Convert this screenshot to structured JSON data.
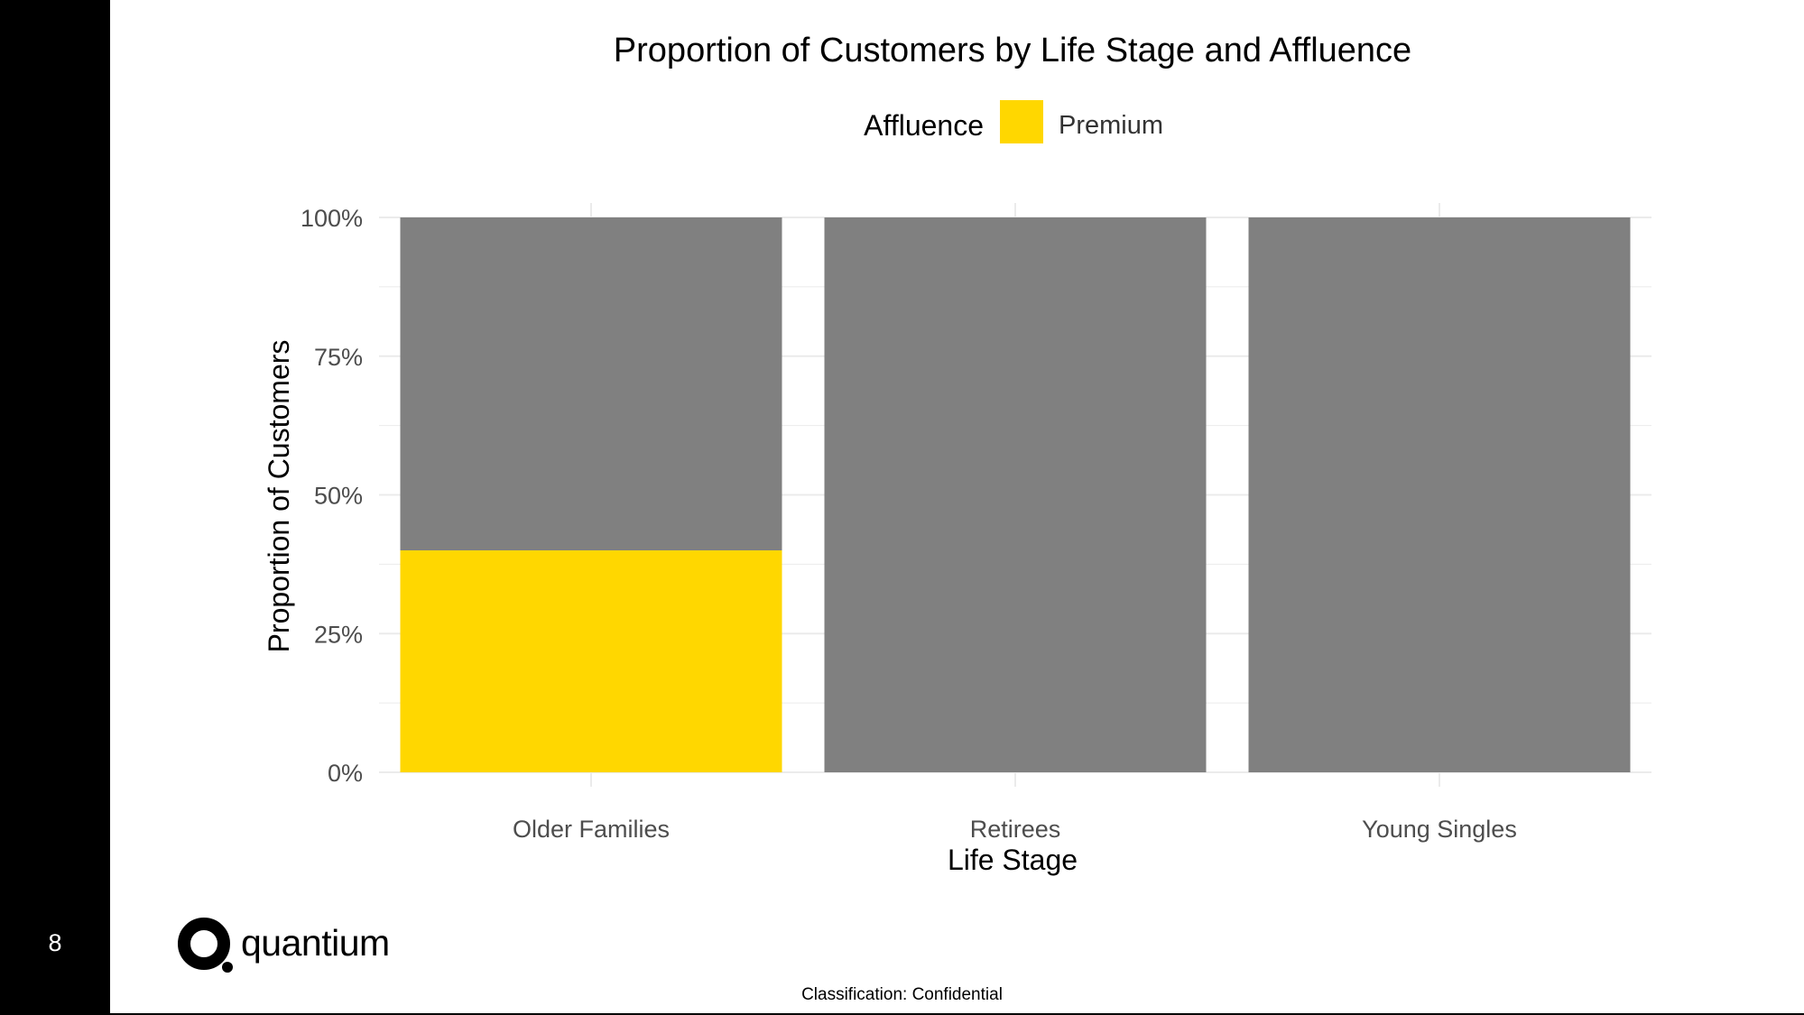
{
  "page": {
    "number": "8",
    "classification": "Classification: Confidential",
    "logo_text": "quantium"
  },
  "chart_data": {
    "type": "bar",
    "stacked": true,
    "title": "Proportion of Customers by Life Stage and Affluence",
    "xlabel": "Life Stage",
    "ylabel": "Proportion of Customers",
    "ylim": [
      0,
      1
    ],
    "y_ticks": [
      0,
      0.25,
      0.5,
      0.75,
      1
    ],
    "y_tick_labels": [
      "0%",
      "25%",
      "50%",
      "75%",
      "100%"
    ],
    "categories": [
      "Older Families",
      "Retirees",
      "Young Singles"
    ],
    "legend": {
      "title": "Affluence",
      "entries": [
        "Premium"
      ],
      "placement": "top"
    },
    "series": [
      {
        "name": "Premium",
        "color": "#FFD700",
        "values": [
          0.4,
          0,
          0
        ]
      },
      {
        "color": "#808080",
        "values": [
          0.6,
          1.0,
          1.0
        ]
      }
    ],
    "grid": true,
    "colors": {
      "gridline": "#ebebeb",
      "axis_text": "#4d4d4d",
      "title_text": "#000000"
    }
  }
}
